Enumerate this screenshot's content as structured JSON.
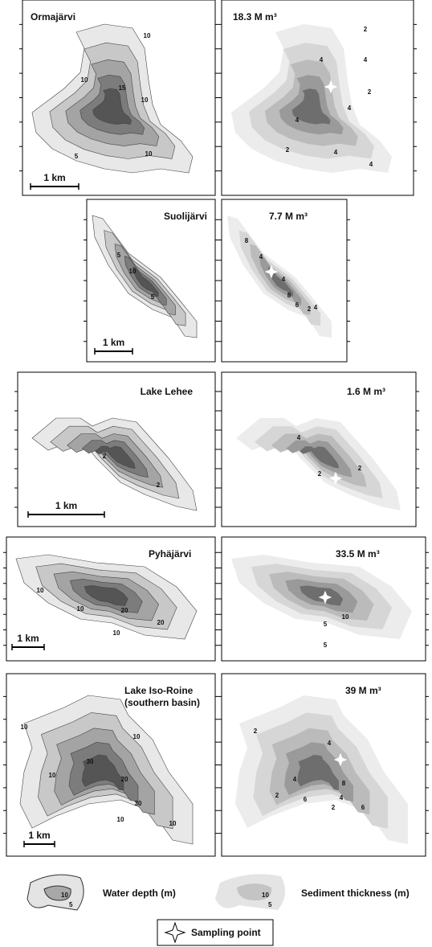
{
  "panels": [
    {
      "depth": {
        "title": "Ormajärvi",
        "scale": "1 km",
        "contour_labels": [
          "10",
          "10",
          "15",
          "10",
          "5",
          "10"
        ]
      },
      "sediment": {
        "title": "18.3 M m³",
        "contour_labels": [
          "2",
          "4",
          "4",
          "2",
          "4",
          "4",
          "2",
          "4",
          "4"
        ]
      }
    },
    {
      "depth": {
        "title": "Suolijärvi",
        "scale": "1 km",
        "contour_labels": [
          "5",
          "10",
          "5"
        ]
      },
      "sediment": {
        "title": "7.7 M m³",
        "contour_labels": [
          "8",
          "4",
          "4",
          "8",
          "6",
          "2",
          "4"
        ]
      }
    },
    {
      "depth": {
        "title": "Lake Lehee",
        "scale": "1 km",
        "contour_labels": [
          "2",
          "2"
        ]
      },
      "sediment": {
        "title": "1.6 M m³",
        "contour_labels": [
          "4",
          "2",
          "2"
        ]
      }
    },
    {
      "depth": {
        "title": "Pyhäjärvi",
        "scale": "1 km",
        "contour_labels": [
          "10",
          "10",
          "20",
          "20",
          "10"
        ]
      },
      "sediment": {
        "title": "33.5 M m³",
        "contour_labels": [
          "10",
          "5",
          "5"
        ]
      }
    },
    {
      "depth": {
        "title": "Lake Iso-Roine",
        "subtitle": "(southern basin)",
        "scale": "1 km",
        "contour_labels": [
          "10",
          "10",
          "30",
          "10",
          "20",
          "30",
          "10",
          "10"
        ]
      },
      "sediment": {
        "title": "39 M m³",
        "contour_labels": [
          "2",
          "4",
          "4",
          "8",
          "2",
          "6",
          "4",
          "2",
          "6"
        ]
      }
    }
  ],
  "legend": {
    "depth": {
      "label": "Water depth (m)",
      "contours": [
        "10",
        "5"
      ]
    },
    "sediment": {
      "label": "Sediment thickness (m)",
      "contours": [
        "10",
        "5"
      ]
    },
    "sampling_point": "Sampling point"
  }
}
